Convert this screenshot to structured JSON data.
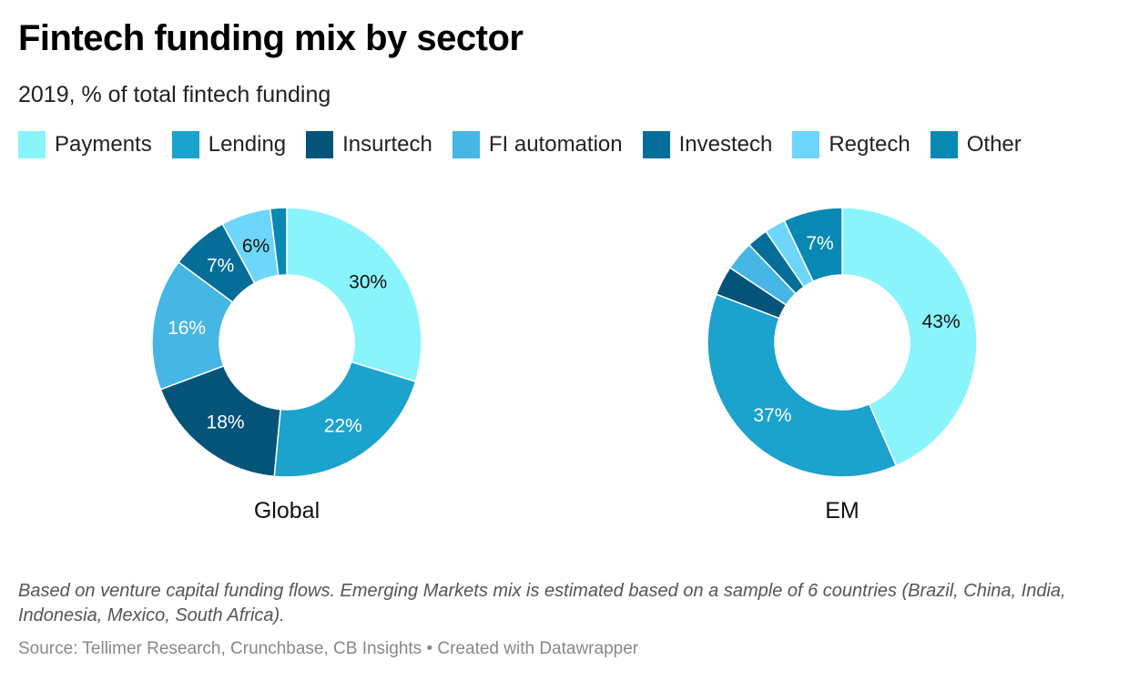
{
  "header": {
    "title": "Fintech funding mix by sector",
    "subtitle": "2019, % of total fintech funding"
  },
  "legend": [
    {
      "label": "Payments",
      "color": "#8af4fc"
    },
    {
      "label": "Lending",
      "color": "#1ba2cd"
    },
    {
      "label": "Insurtech",
      "color": "#04547a"
    },
    {
      "label": "FI automation",
      "color": "#46b6e4"
    },
    {
      "label": "Investech",
      "color": "#046d98"
    },
    {
      "label": "Regtech",
      "color": "#6dd6fa"
    },
    {
      "label": "Other",
      "color": "#0889b3"
    }
  ],
  "chart_data": [
    {
      "type": "pie",
      "name": "Global",
      "title": "Global",
      "categories": [
        "Payments",
        "Lending",
        "Insurtech",
        "FI automation",
        "Investech",
        "Regtech",
        "Other"
      ],
      "values": [
        30,
        22,
        18,
        16,
        7,
        6,
        2
      ],
      "data_labels": [
        "30%",
        "22%",
        "18%",
        "16%",
        "7%",
        "6%",
        ""
      ]
    },
    {
      "type": "pie",
      "name": "EM",
      "title": "EM",
      "categories": [
        "Payments",
        "Lending",
        "Insurtech",
        "FI automation",
        "Investech",
        "Regtech",
        "Other"
      ],
      "values": [
        43,
        37,
        3.5,
        3.5,
        2.5,
        2.5,
        7
      ],
      "data_labels": [
        "43%",
        "37%",
        "",
        "",
        "",
        "",
        "7%"
      ]
    }
  ],
  "footer": {
    "notes": "Based on venture capital funding flows. Emerging Markets mix is estimated based on a sample of 6 countries (Brazil, China, India, Indonesia, Mexico, South Africa).",
    "source": "Source: Tellimer Research, Crunchbase, CB Insights • Created with Datawrapper"
  }
}
